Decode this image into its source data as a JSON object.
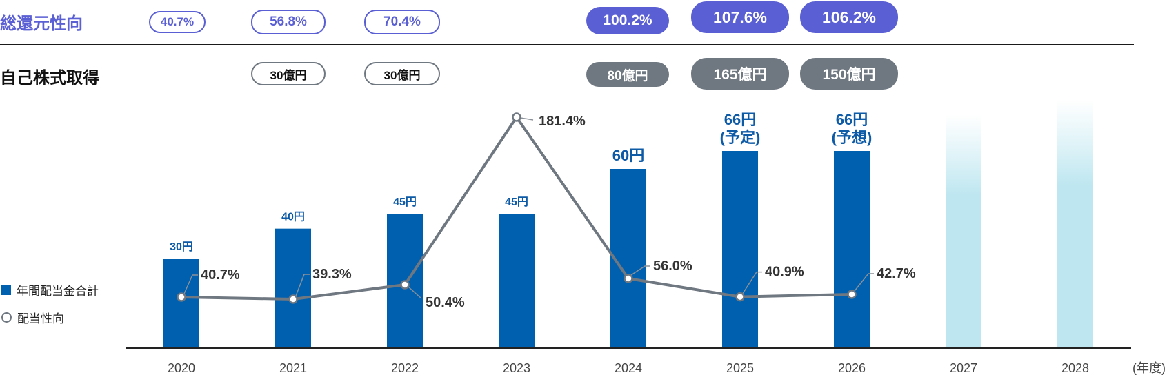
{
  "rows": {
    "total_return": {
      "label": "総還元性向",
      "values": [
        "40.7%",
        "56.8%",
        "70.4%",
        "100.2%",
        "107.6%",
        "106.2%"
      ]
    },
    "buyback": {
      "label": "自己株式取得",
      "values": [
        "30億円",
        "30億円",
        "80億円",
        "165億円",
        "150億円"
      ]
    }
  },
  "legend": {
    "dividend": "年間配当金合計",
    "payout": "配当性向"
  },
  "colors": {
    "bar": "#0060b0",
    "future_bar": "#bde6f0",
    "line": "#6f7780",
    "accent": "#5a5fd3",
    "label_blue": "#0d5aa7"
  },
  "chart_data": {
    "type": "bar",
    "categories": [
      "2020",
      "2021",
      "2022",
      "2023",
      "2024",
      "2025",
      "2026",
      "2027",
      "2028"
    ],
    "x_unit": "(年度)",
    "series": [
      {
        "name": "年間配当金合計",
        "values": [
          30,
          40,
          45,
          45,
          60,
          66,
          66,
          null,
          null
        ],
        "labels": [
          "30円",
          "40円",
          "45円",
          "45円",
          "60円",
          "66円\n(予定)",
          "66円\n(予想)",
          "",
          ""
        ]
      },
      {
        "name": "配当性向",
        "type": "line",
        "values": [
          40.7,
          39.3,
          50.4,
          181.4,
          56.0,
          40.9,
          42.7,
          null,
          null
        ],
        "labels": [
          "40.7%",
          "39.3%",
          "50.4%",
          "181.4%",
          "56.0%",
          "40.9%",
          "42.7%",
          "",
          ""
        ]
      }
    ],
    "future_placeholders": [
      {
        "category": "2027",
        "level": 0.79
      },
      {
        "category": "2028",
        "level": 0.84
      }
    ]
  }
}
